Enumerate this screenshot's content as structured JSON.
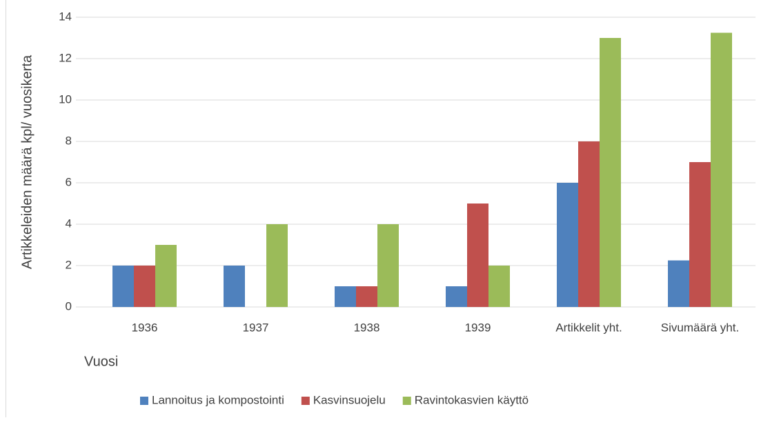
{
  "chart_data": {
    "type": "bar",
    "y_label": "Artikkeleiden määrä kpl/ vuosikerta",
    "x_label": "Vuosi",
    "categories": [
      "1936",
      "1937",
      "1938",
      "1939",
      "Artikkelit yht.",
      "Sivumäärä yht."
    ],
    "series": [
      {
        "name": "Lannoitus ja kompostointi",
        "color": "#4f81bd",
        "values": [
          2,
          2,
          1,
          1,
          6,
          2.25
        ]
      },
      {
        "name": "Kasvinsuojelu",
        "color": "#c0504d",
        "values": [
          2,
          0,
          1,
          5,
          8,
          7
        ]
      },
      {
        "name": "Ravintokasvien käyttö",
        "color": "#9bbb59",
        "values": [
          3,
          4,
          4,
          2,
          13,
          13.25
        ]
      }
    ],
    "ylim": [
      0,
      14
    ],
    "yticks": [
      0,
      2,
      4,
      6,
      8,
      10,
      12,
      14
    ],
    "grid": true,
    "legend": "bottom"
  }
}
